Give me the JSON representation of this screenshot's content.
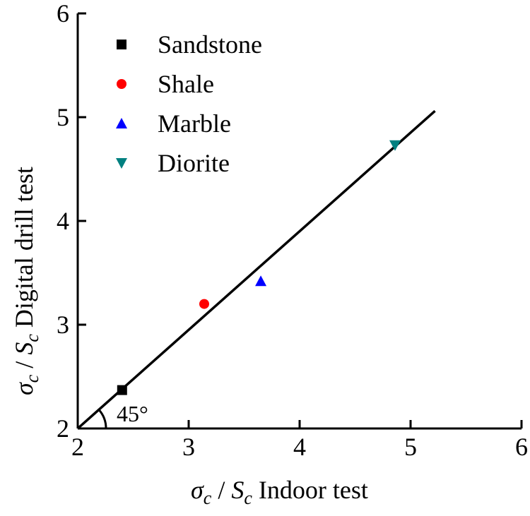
{
  "chart_data": {
    "type": "scatter",
    "xlabel": {
      "sym": "σ",
      "sub": "c",
      "slash": " / ",
      "sym2": "S",
      "sub2": "c",
      "rest": " Indoor test"
    },
    "ylabel": {
      "sym": "σ",
      "sub": "c",
      "slash": " / ",
      "sym2": "S",
      "sub2": "c",
      "rest": " Digital drill test"
    },
    "xlim": [
      2,
      6
    ],
    "ylim": [
      2,
      6
    ],
    "xticks": [
      "2",
      "3",
      "4",
      "5",
      "6"
    ],
    "yticks": [
      "2",
      "3",
      "4",
      "5",
      "6"
    ],
    "grid": false,
    "legend_position": "top-left",
    "series": [
      {
        "name": "Sandstone",
        "marker": "square",
        "color": "#000000",
        "x": 2.4,
        "y": 2.37
      },
      {
        "name": "Shale",
        "marker": "circle",
        "color": "#ff0000",
        "x": 3.14,
        "y": 3.2
      },
      {
        "name": "Marble",
        "marker": "triangle-up",
        "color": "#0000ff",
        "x": 3.65,
        "y": 3.42
      },
      {
        "name": "Diorite",
        "marker": "triangle-down",
        "color": "#008080",
        "x": 4.86,
        "y": 4.73
      }
    ],
    "fit_line": {
      "x": [
        2.0,
        5.22
      ],
      "y": [
        2.0,
        5.06
      ],
      "color": "#000000"
    },
    "annotation": "45°"
  }
}
